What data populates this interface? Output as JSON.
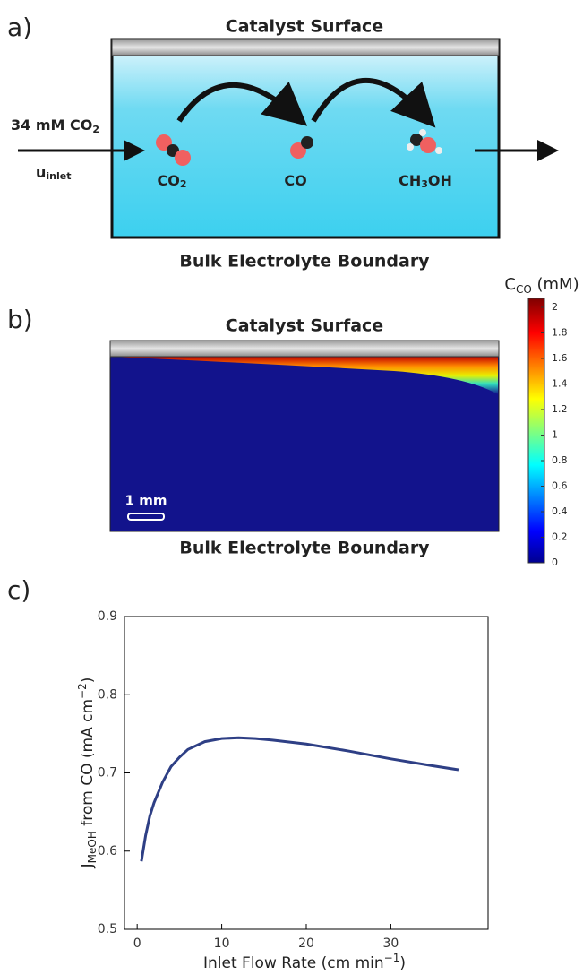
{
  "panel_a": {
    "label": "a)",
    "top": "Catalyst Surface",
    "inlet": [
      "34 mM CO",
      "2"
    ],
    "velocity": [
      "u",
      "inlet"
    ],
    "species": [
      [
        "CO",
        "2",
        ""
      ],
      [
        "CO",
        "",
        ""
      ],
      [
        "CH",
        "3",
        "OH"
      ]
    ],
    "bottom": "Bulk Electrolyte Boundary"
  },
  "panel_b": {
    "label": "b)",
    "top": "Catalyst Surface",
    "scale_bar": "1 mm",
    "bottom": "Bulk Electrolyte Boundary",
    "colorbar": {
      "title": [
        "C",
        "CO",
        " (mM)"
      ],
      "lim": [
        0,
        2.07
      ],
      "ticks": [
        0,
        0.2,
        0.4,
        0.6,
        0.8,
        1,
        1.2,
        1.4,
        1.6,
        1.8,
        2
      ]
    }
  },
  "panel_c_label": "c)",
  "chart_data": {
    "type": "line",
    "xlabel": [
      "Inlet Flow Rate (cm min",
      "−1",
      ")"
    ],
    "ylabel": [
      "J",
      "MeOH",
      " from CO (mA cm",
      "−2",
      ")"
    ],
    "x": [
      0.5,
      1,
      1.5,
      2,
      2.5,
      3,
      4,
      5,
      6,
      8,
      10,
      12,
      14,
      16,
      20,
      25,
      30,
      35,
      38
    ],
    "series": [
      {
        "color": "#2e3f85",
        "values": [
          0.587,
          0.62,
          0.645,
          0.662,
          0.675,
          0.688,
          0.708,
          0.72,
          0.73,
          0.74,
          0.744,
          0.745,
          0.744,
          0.742,
          0.737,
          0.728,
          0.718,
          0.709,
          0.704
        ]
      }
    ],
    "xlim": [
      -1.5,
      41.5
    ],
    "xticks": [
      0,
      10,
      20,
      30
    ],
    "ylim": [
      0.5,
      0.9
    ],
    "yticks": [
      0.5,
      0.6,
      0.7,
      0.8,
      0.9
    ]
  }
}
